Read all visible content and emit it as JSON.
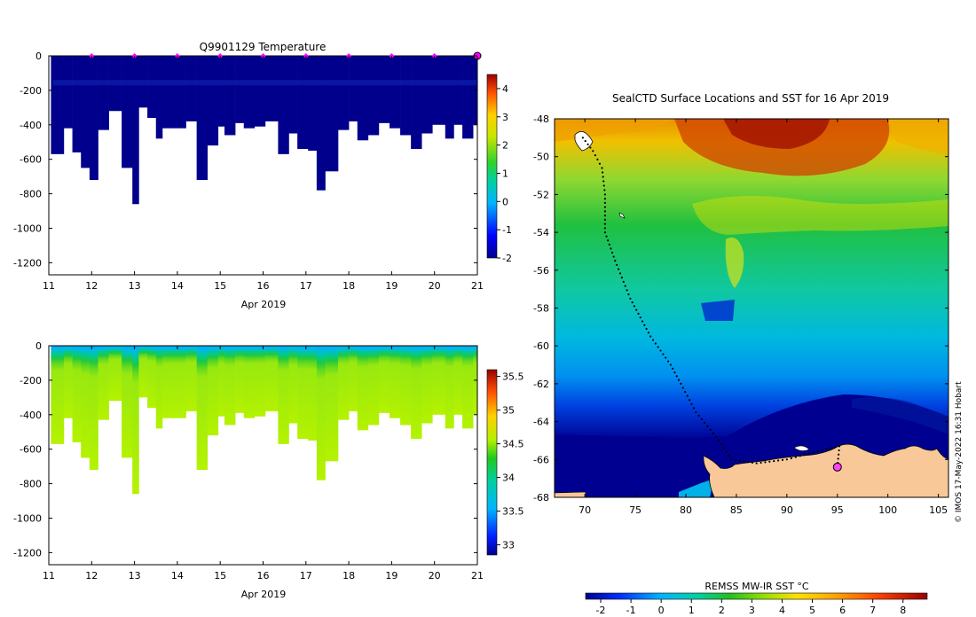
{
  "chart_data": [
    {
      "type": "heatmap",
      "title": "Q9901129  Temperature",
      "xlabel": "Apr 2019",
      "ylabel": "",
      "xlim": [
        11,
        21
      ],
      "ylim": [
        -1270,
        0
      ],
      "x_ticks": [
        "11",
        "12",
        "13",
        "14",
        "15",
        "16",
        "17",
        "18",
        "19",
        "20",
        "21"
      ],
      "y_ticks": [
        "0",
        "-200",
        "-400",
        "-600",
        "-800",
        "-1000",
        "-1200"
      ],
      "colorbar": {
        "min": -2,
        "max": 4.5,
        "ticks": [
          "4",
          "3",
          "2",
          "1",
          "0",
          "-1",
          "-2"
        ]
      },
      "profile_days": [
        11.05,
        11.35,
        11.55,
        11.75,
        11.95,
        12.15,
        12.4,
        12.7,
        12.95,
        13.1,
        13.3,
        13.5,
        13.65,
        13.95,
        14.2,
        14.45,
        14.7,
        14.95,
        15.1,
        15.35,
        15.55,
        15.8,
        16.05,
        16.35,
        16.6,
        16.8,
        17.05,
        17.25,
        17.45,
        17.75,
        18.0,
        18.2,
        18.45,
        18.7,
        18.95,
        19.2,
        19.45,
        19.7,
        19.95,
        20.25,
        20.45,
        20.65,
        20.9,
        21.05
      ],
      "profile_depths": [
        -570,
        -420,
        -560,
        -650,
        -720,
        -430,
        -320,
        -650,
        -860,
        -300,
        -360,
        -480,
        -420,
        -420,
        -380,
        -720,
        -520,
        -410,
        -460,
        -390,
        -420,
        -410,
        -380,
        -570,
        -450,
        -540,
        -550,
        -780,
        -670,
        -430,
        -380,
        -490,
        -460,
        -390,
        -420,
        -460,
        -540,
        -450,
        -400,
        -480,
        -400,
        -480,
        -400,
        -480
      ],
      "marker_days": [
        "12",
        "13",
        "14",
        "15",
        "16",
        "17",
        "18",
        "19",
        "20"
      ]
    },
    {
      "type": "heatmap",
      "title": "",
      "xlabel": "Apr 2019",
      "xlim": [
        11,
        21
      ],
      "ylim": [
        -1270,
        0
      ],
      "x_ticks": [
        "11",
        "12",
        "13",
        "14",
        "15",
        "16",
        "17",
        "18",
        "19",
        "20",
        "21"
      ],
      "y_ticks": [
        "0",
        "-200",
        "-400",
        "-600",
        "-800",
        "-1000",
        "-1200"
      ],
      "colorbar": {
        "min": 32.85,
        "max": 35.6,
        "ticks": [
          "35.5",
          "35",
          "34.5",
          "34",
          "33.5",
          "33"
        ]
      }
    },
    {
      "type": "heatmap",
      "title": "SealCTD Surface Locations and SST for 16 Apr 2019",
      "xlim": [
        67,
        106
      ],
      "ylim": [
        -68,
        -48
      ],
      "x_ticks": [
        "70",
        "75",
        "80",
        "85",
        "90",
        "95",
        "100",
        "105"
      ],
      "y_ticks": [
        "-48",
        "-50",
        "-52",
        "-54",
        "-56",
        "-58",
        "-60",
        "-62",
        "-64",
        "-66",
        "-68"
      ],
      "colorbar": {
        "label": "REMSS MW-IR SST °C",
        "min": -2.5,
        "max": 8.8,
        "ticks": [
          "-2",
          "-1",
          "0",
          "1",
          "2",
          "3",
          "4",
          "5",
          "6",
          "7",
          "8"
        ]
      },
      "track": [
        [
          69.8,
          -49.0
        ],
        [
          70.8,
          -49.7
        ],
        [
          71.7,
          -50.6
        ],
        [
          72.0,
          -52.0
        ],
        [
          72.0,
          -54.0
        ],
        [
          73.0,
          -55.5
        ],
        [
          74.5,
          -57.5
        ],
        [
          76.5,
          -59.5
        ],
        [
          78.5,
          -61.0
        ],
        [
          79.5,
          -62.0
        ],
        [
          81.0,
          -63.5
        ],
        [
          83.0,
          -64.8
        ],
        [
          84.5,
          -66.0
        ],
        [
          87.0,
          -66.2
        ],
        [
          90.0,
          -66.0
        ],
        [
          93.5,
          -65.5
        ],
        [
          95.2,
          -65.3
        ],
        [
          95.0,
          -66.4
        ]
      ],
      "current_position": [
        95.0,
        -66.4
      ]
    }
  ],
  "credit": "© IMOS 17-May-2022 16:31 Hobart"
}
